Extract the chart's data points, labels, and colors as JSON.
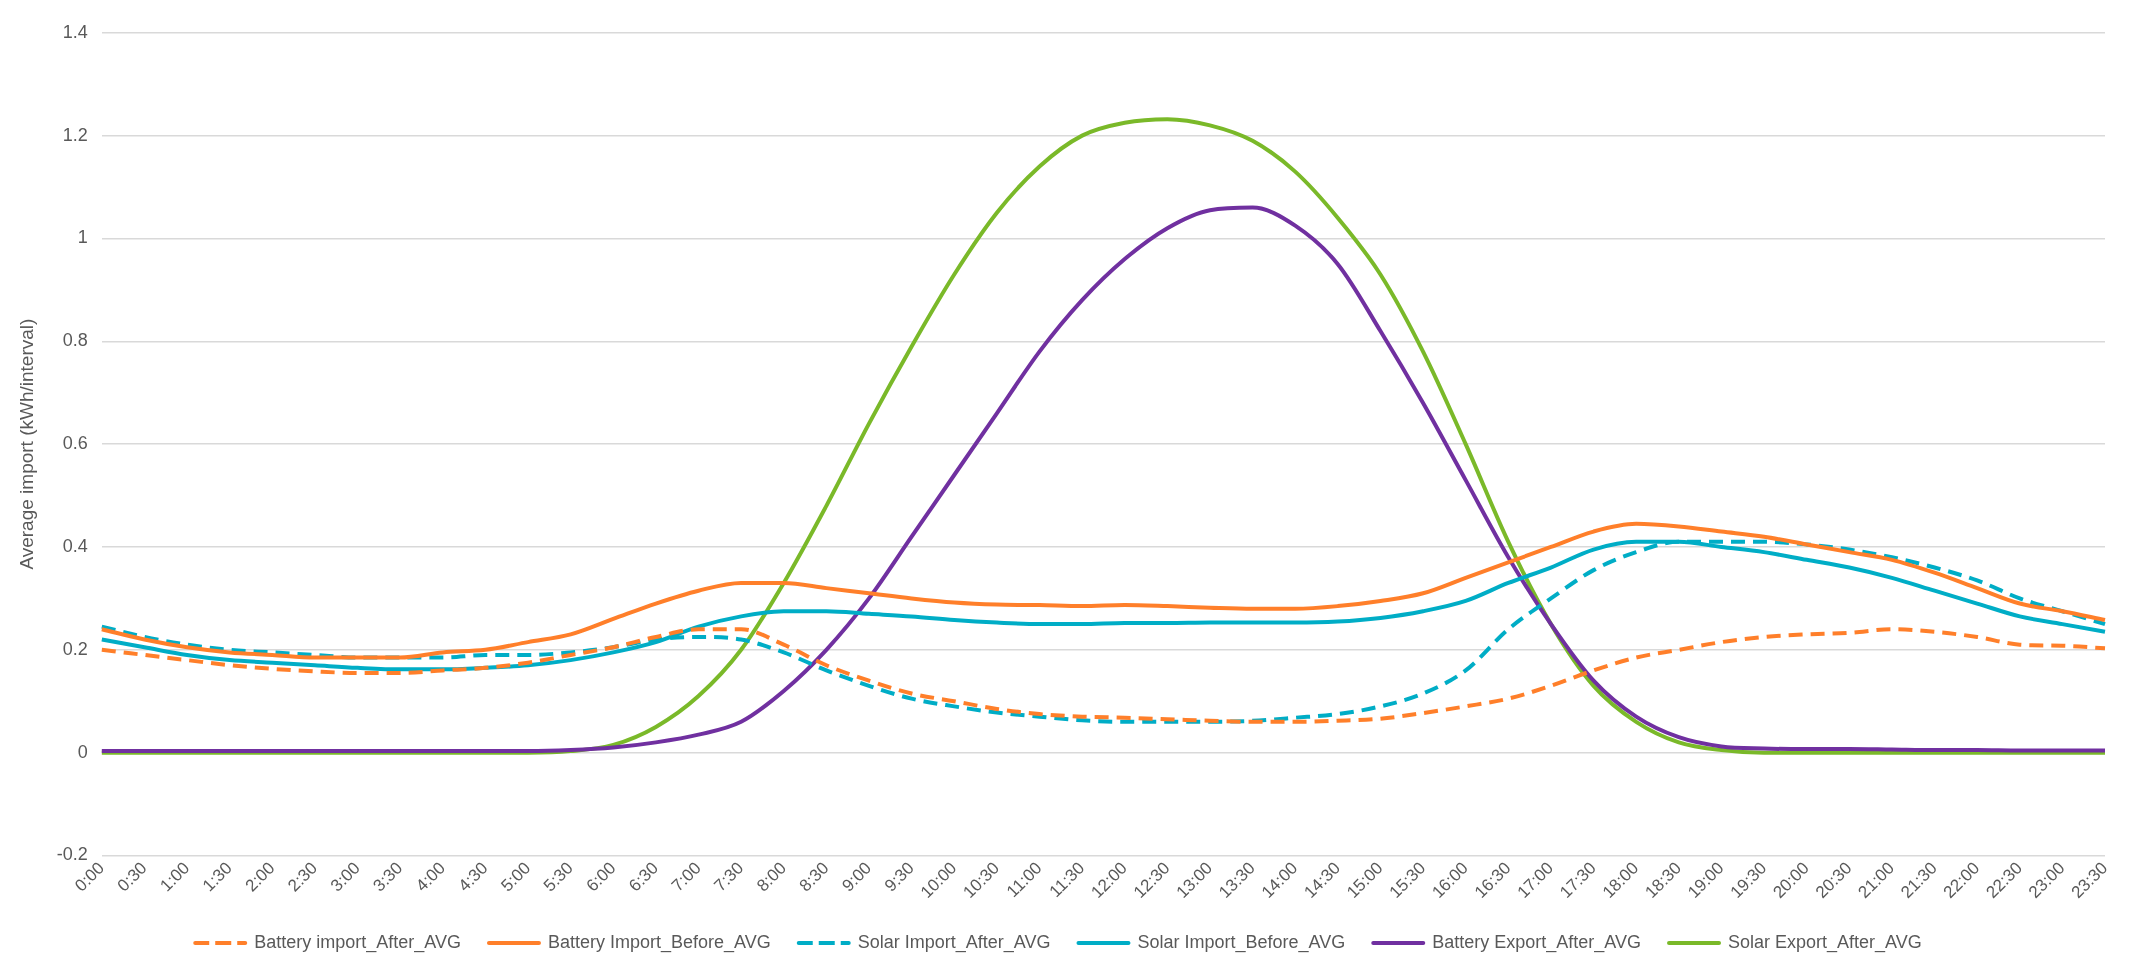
{
  "chart_data": {
    "type": "line",
    "ylabel": "Average import (kWh/interval)",
    "categories": [
      "0:00",
      "0:30",
      "1:00",
      "1:30",
      "2:00",
      "2:30",
      "3:00",
      "3:30",
      "4:00",
      "4:30",
      "5:00",
      "5:30",
      "6:00",
      "6:30",
      "7:00",
      "7:30",
      "8:00",
      "8:30",
      "9:00",
      "9:30",
      "10:00",
      "10:30",
      "11:00",
      "11:30",
      "12:00",
      "12:30",
      "13:00",
      "13:30",
      "14:00",
      "14:30",
      "15:00",
      "15:30",
      "16:00",
      "16:30",
      "17:00",
      "17:30",
      "18:00",
      "18:30",
      "19:00",
      "19:30",
      "20:00",
      "20:30",
      "21:00",
      "21:30",
      "22:00",
      "22:30",
      "23:00",
      "23:30"
    ],
    "ylim": [
      -0.2,
      1.4
    ],
    "yticks": [
      -0.2,
      0,
      0.2,
      0.4,
      0.6,
      0.8,
      1,
      1.2,
      1.4
    ],
    "grid": "y",
    "legend": "bottom",
    "marker": "none",
    "series": [
      {
        "name": "Battery import_After_AVG",
        "color": "#ff7f2a",
        "line_style": "dashed",
        "values": [
          0.2,
          0.19,
          0.18,
          0.17,
          0.163,
          0.158,
          0.155,
          0.155,
          0.16,
          0.165,
          0.175,
          0.19,
          0.205,
          0.225,
          0.24,
          0.24,
          0.21,
          0.17,
          0.14,
          0.115,
          0.1,
          0.085,
          0.075,
          0.07,
          0.068,
          0.065,
          0.062,
          0.06,
          0.06,
          0.062,
          0.066,
          0.077,
          0.09,
          0.105,
          0.13,
          0.16,
          0.185,
          0.2,
          0.215,
          0.225,
          0.23,
          0.233,
          0.24,
          0.235,
          0.225,
          0.21,
          0.208,
          0.203
        ]
      },
      {
        "name": "Battery Import_Before_AVG",
        "color": "#ff7f2a",
        "line_style": "solid",
        "values": [
          0.24,
          0.22,
          0.205,
          0.195,
          0.19,
          0.185,
          0.185,
          0.185,
          0.195,
          0.2,
          0.215,
          0.23,
          0.26,
          0.29,
          0.315,
          0.33,
          0.33,
          0.32,
          0.31,
          0.3,
          0.292,
          0.288,
          0.287,
          0.285,
          0.287,
          0.285,
          0.282,
          0.28,
          0.28,
          0.285,
          0.295,
          0.31,
          0.34,
          0.37,
          0.4,
          0.43,
          0.445,
          0.44,
          0.43,
          0.42,
          0.405,
          0.39,
          0.375,
          0.35,
          0.32,
          0.29,
          0.275,
          0.258
        ]
      },
      {
        "name": "Solar Import_After_AVG",
        "color": "#00adc6",
        "line_style": "dashed",
        "values": [
          0.245,
          0.225,
          0.21,
          0.2,
          0.195,
          0.19,
          0.185,
          0.185,
          0.185,
          0.19,
          0.19,
          0.195,
          0.205,
          0.22,
          0.225,
          0.22,
          0.195,
          0.16,
          0.13,
          0.105,
          0.09,
          0.078,
          0.07,
          0.063,
          0.06,
          0.06,
          0.06,
          0.062,
          0.068,
          0.075,
          0.09,
          0.115,
          0.16,
          0.24,
          0.3,
          0.355,
          0.39,
          0.41,
          0.41,
          0.41,
          0.405,
          0.395,
          0.38,
          0.36,
          0.335,
          0.3,
          0.275,
          0.25
        ]
      },
      {
        "name": "Solar Import_Before_AVG",
        "color": "#00adc6",
        "line_style": "solid",
        "values": [
          0.22,
          0.205,
          0.19,
          0.18,
          0.175,
          0.17,
          0.165,
          0.162,
          0.162,
          0.165,
          0.17,
          0.18,
          0.195,
          0.215,
          0.245,
          0.265,
          0.275,
          0.275,
          0.27,
          0.265,
          0.258,
          0.253,
          0.25,
          0.25,
          0.252,
          0.252,
          0.253,
          0.253,
          0.253,
          0.255,
          0.262,
          0.275,
          0.295,
          0.33,
          0.36,
          0.395,
          0.41,
          0.41,
          0.4,
          0.39,
          0.375,
          0.36,
          0.34,
          0.315,
          0.29,
          0.265,
          0.25,
          0.235
        ]
      },
      {
        "name": "Battery Export_After_AVG",
        "color": "#7030a0",
        "line_style": "solid",
        "values": [
          0.003,
          0.003,
          0.003,
          0.003,
          0.003,
          0.003,
          0.003,
          0.003,
          0.003,
          0.003,
          0.003,
          0.005,
          0.01,
          0.02,
          0.035,
          0.06,
          0.12,
          0.2,
          0.3,
          0.42,
          0.54,
          0.66,
          0.78,
          0.88,
          0.96,
          1.02,
          1.055,
          1.06,
          1.025,
          0.95,
          0.82,
          0.68,
          0.53,
          0.38,
          0.25,
          0.14,
          0.07,
          0.03,
          0.012,
          0.008,
          0.007,
          0.007,
          0.006,
          0.005,
          0.005,
          0.004,
          0.004,
          0.004
        ]
      },
      {
        "name": "Solar Export_After_AVG",
        "color": "#7ab929",
        "line_style": "solid",
        "values": [
          0,
          0,
          0,
          0,
          0,
          0,
          0,
          0,
          0,
          0,
          0,
          0.003,
          0.015,
          0.05,
          0.11,
          0.2,
          0.33,
          0.48,
          0.64,
          0.79,
          0.93,
          1.05,
          1.14,
          1.2,
          1.225,
          1.232,
          1.22,
          1.19,
          1.13,
          1.04,
          0.93,
          0.78,
          0.6,
          0.41,
          0.25,
          0.13,
          0.06,
          0.02,
          0.005,
          0,
          0,
          0,
          0,
          0,
          0,
          0,
          0,
          0
        ]
      }
    ]
  }
}
